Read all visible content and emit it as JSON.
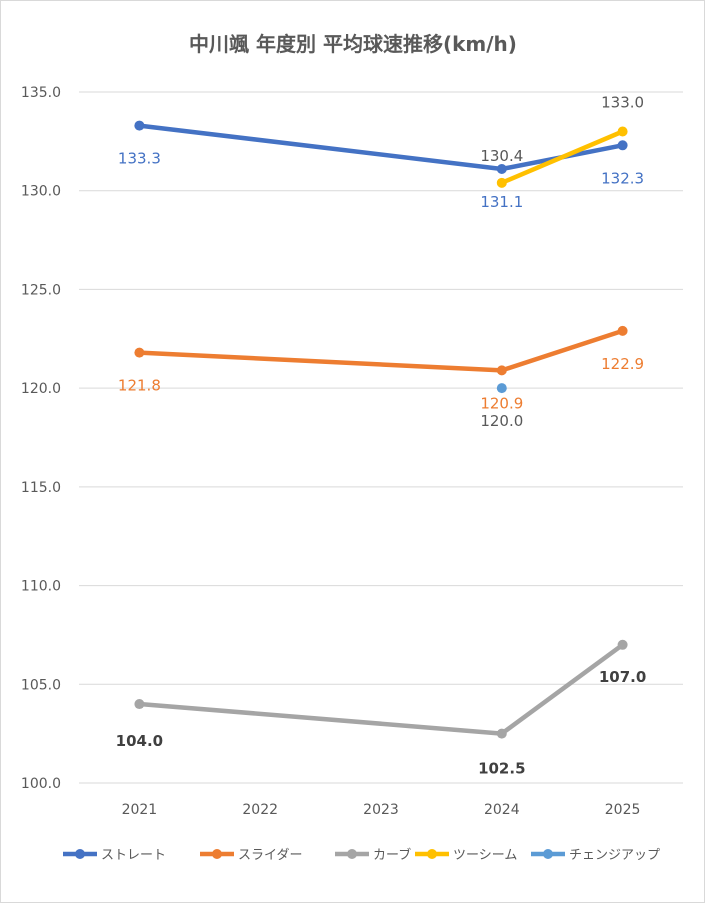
{
  "chart_data": {
    "type": "line",
    "title": "中川颯 年度別 平均球速推移(km/h)",
    "xlabel": "",
    "ylabel": "",
    "categories": [
      "2021",
      "2022",
      "2023",
      "2024",
      "2025"
    ],
    "ylim": [
      100,
      135
    ],
    "y_ticks": [
      "100.0",
      "105.0",
      "110.0",
      "115.0",
      "120.0",
      "125.0",
      "130.0",
      "135.0"
    ],
    "grid": true,
    "legend_position": "bottom",
    "series": [
      {
        "name": "ストレート",
        "color": "#4472c4",
        "values": [
          133.3,
          null,
          null,
          131.1,
          132.3
        ],
        "labels": [
          "133.3",
          null,
          null,
          "131.1",
          "132.3"
        ],
        "label_color": "#4472c4"
      },
      {
        "name": "スライダー",
        "color": "#ed7d31",
        "values": [
          121.8,
          null,
          null,
          120.9,
          122.9
        ],
        "labels": [
          "121.8",
          null,
          null,
          "120.9",
          "122.9"
        ],
        "label_color": "#ed7d31"
      },
      {
        "name": "カーブ",
        "color": "#a5a5a5",
        "values": [
          104.0,
          null,
          null,
          102.5,
          107.0
        ],
        "labels": [
          "104.0",
          null,
          null,
          "102.5",
          "107.0"
        ],
        "label_color": "#404040"
      },
      {
        "name": "ツーシーム",
        "color": "#ffc000",
        "values": [
          null,
          null,
          null,
          130.4,
          133.0
        ],
        "labels": [
          null,
          null,
          null,
          "130.4",
          "133.0"
        ],
        "label_color": "#595959"
      },
      {
        "name": "チェンジアップ",
        "color": "#5b9bd5",
        "values": [
          null,
          null,
          null,
          120.0,
          null
        ],
        "labels": [
          null,
          null,
          null,
          "120.0",
          null
        ],
        "label_color": "#595959"
      }
    ]
  }
}
